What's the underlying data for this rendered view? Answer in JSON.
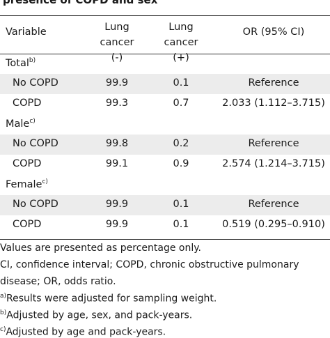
{
  "title": "presence of COPD and sex",
  "table": {
    "header": [
      "Variable",
      "Lung cancer (-)",
      "Lung cancer (+)",
      "OR (95% CI)"
    ],
    "sections": [
      {
        "label": "Total",
        "note": "b)",
        "rows": [
          [
            "No COPD",
            "99.9",
            "0.1",
            "Reference"
          ],
          [
            "COPD",
            "99.3",
            "0.7",
            "2.033 (1.112–3.715)"
          ]
        ]
      },
      {
        "label": "Male",
        "note": "c)",
        "rows": [
          [
            "No COPD",
            "99.8",
            "0.2",
            "Reference"
          ],
          [
            "COPD",
            "99.1",
            "0.9",
            "2.574 (1.214–3.715)"
          ]
        ]
      },
      {
        "label": "Female",
        "note": "c)",
        "rows": [
          [
            "No COPD",
            "99.9",
            "0.1",
            "Reference"
          ],
          [
            "COPD",
            "99.9",
            "0.1",
            "0.519 (0.295–0.910)"
          ]
        ]
      }
    ]
  },
  "footnotes": [
    {
      "text": "Values are presented as percentage only."
    },
    {
      "text": "CI, confidence interval; COPD, chronic obstructive pulmonary"
    },
    {
      "text": "disease; OR, odds ratio."
    },
    {
      "marker": "a)",
      "text": "Results were adjusted for sampling weight."
    },
    {
      "marker": "b)",
      "text": "Adjusted by age, sex, and pack-years."
    },
    {
      "marker": "c)",
      "text": "Adjusted by age and pack-years."
    }
  ]
}
